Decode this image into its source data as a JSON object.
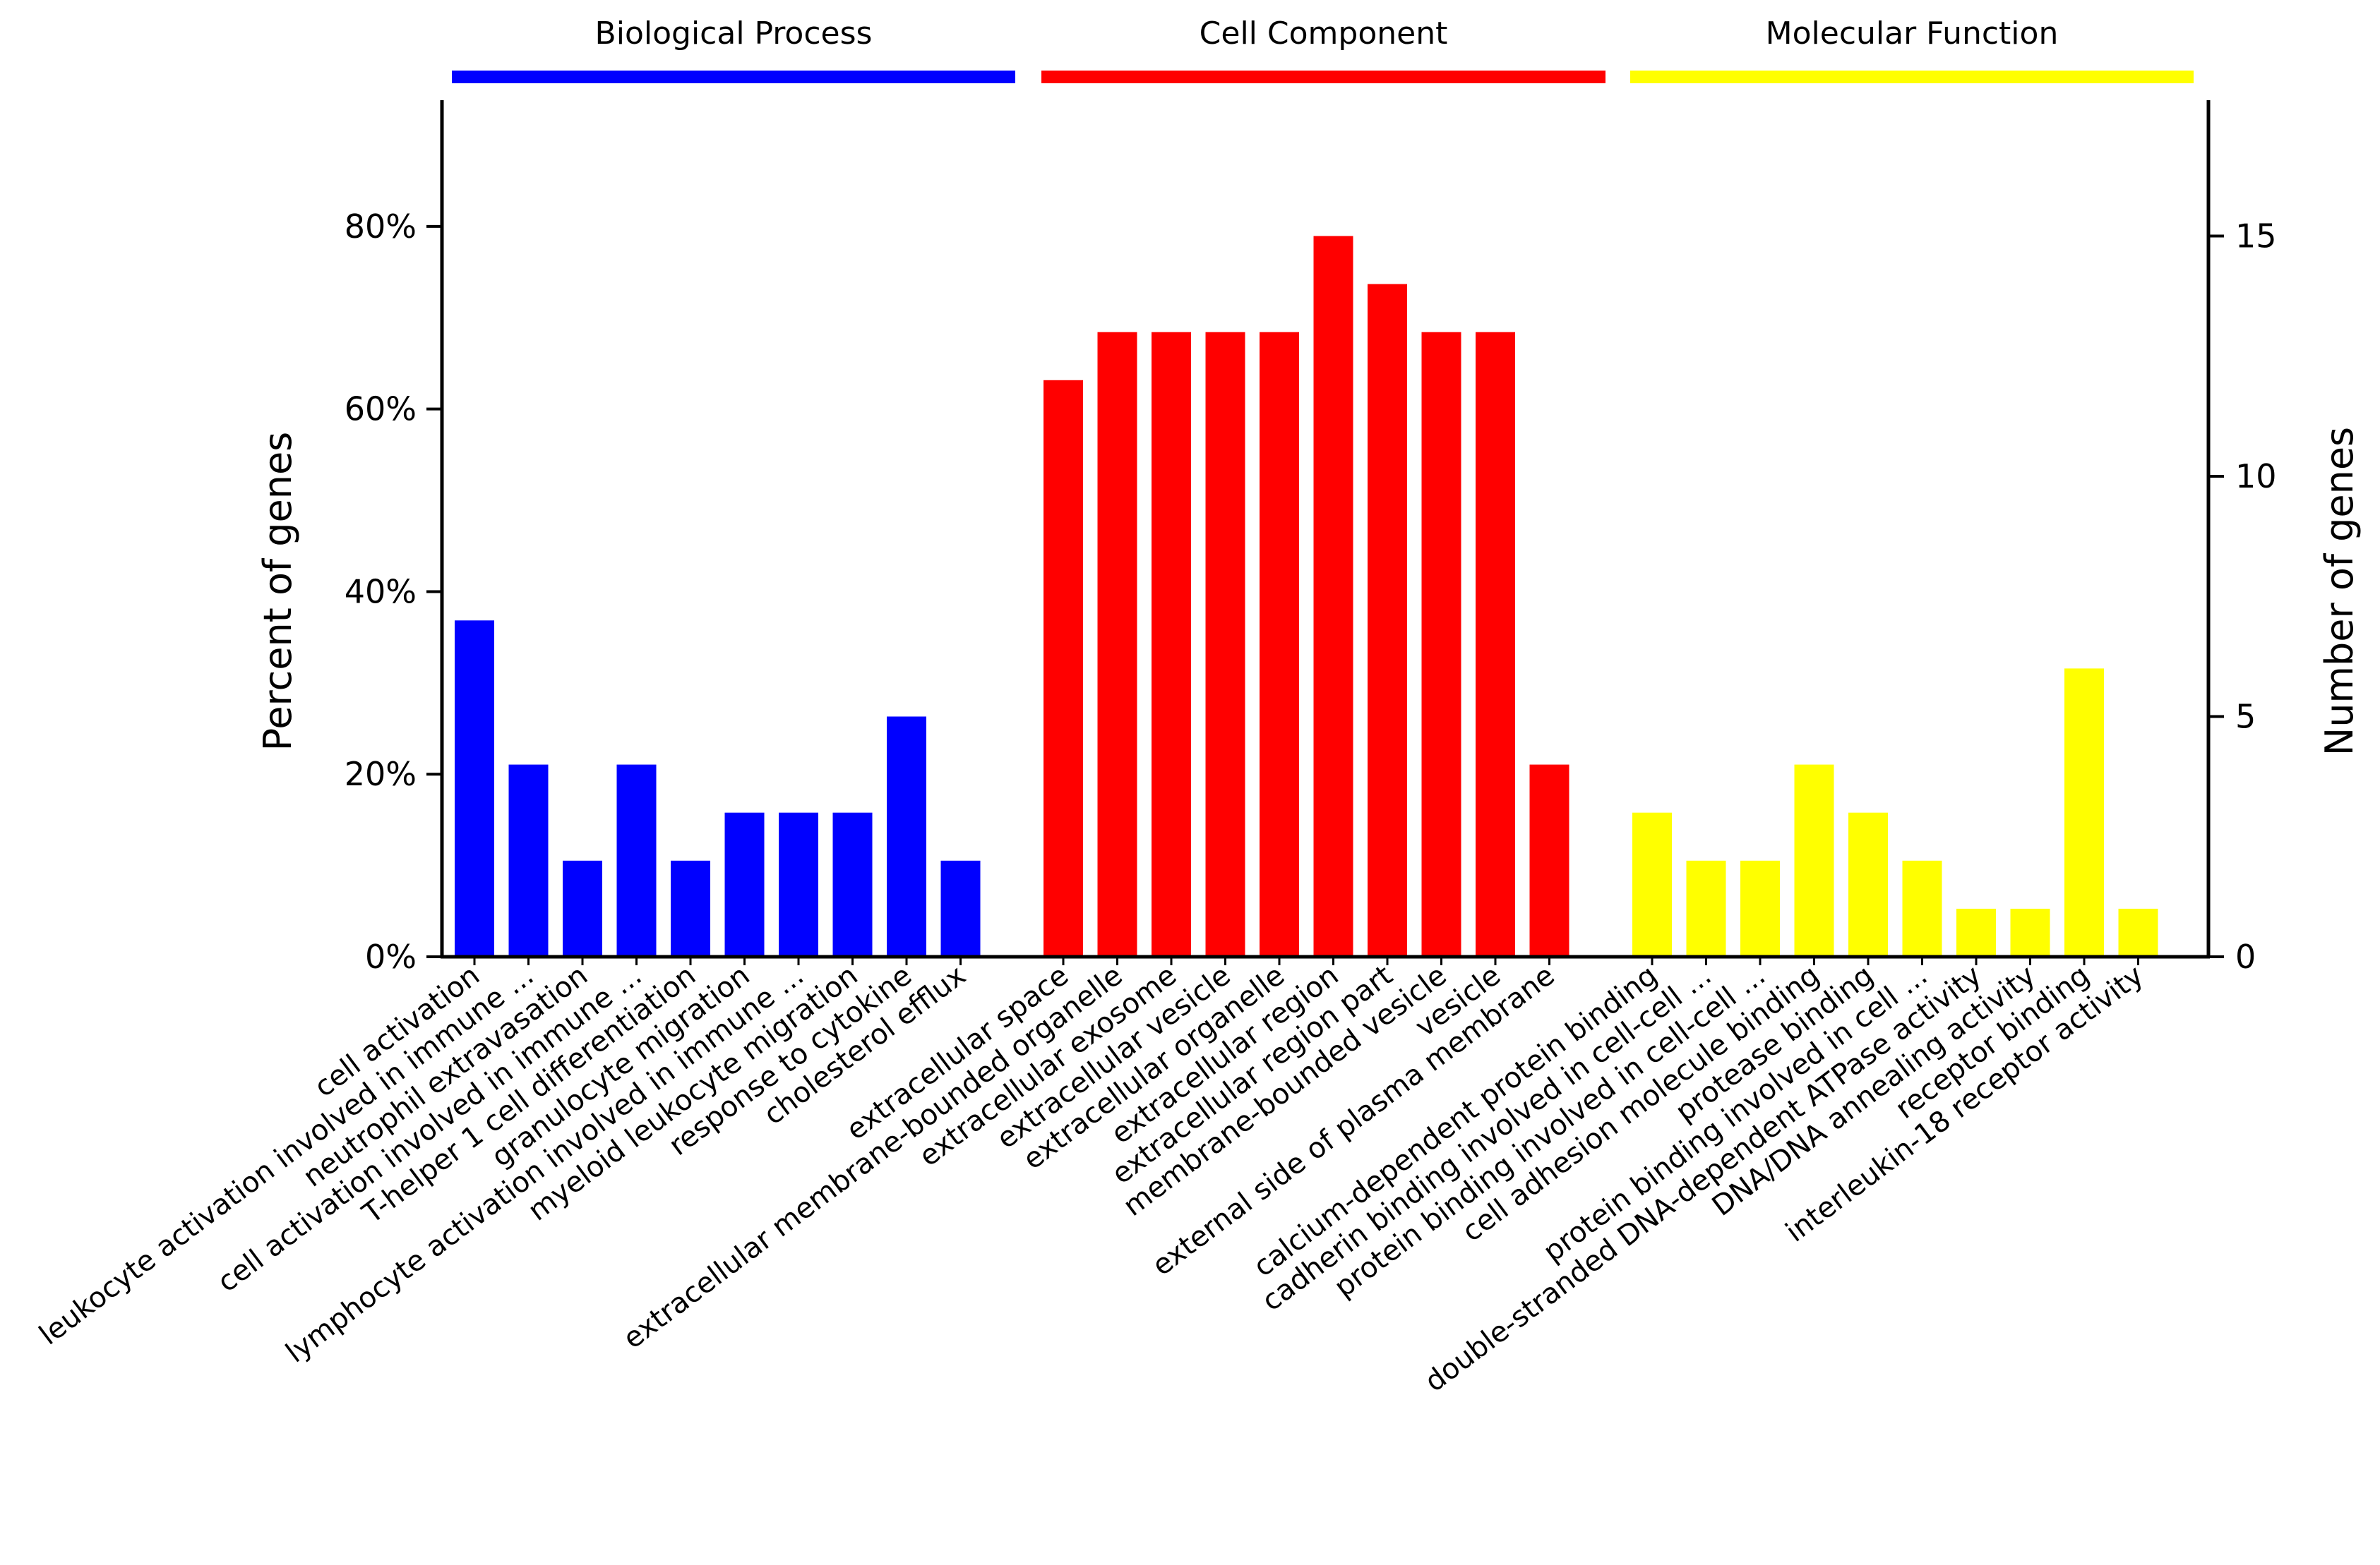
{
  "chart_data": {
    "type": "bar",
    "title": "",
    "ylabel_left": "Percent of genes",
    "ylabel_right": "Number of genes",
    "y_left_ticks": [
      "0%",
      "20%",
      "40%",
      "60%",
      "80%"
    ],
    "y_right_ticks": [
      "0",
      "5",
      "10",
      "15"
    ],
    "y_right_range": [
      0,
      18
    ],
    "total_genes": 19,
    "colors": {
      "Biological Process": "#0000ff",
      "Cell Component": "#ff0000",
      "Molecular Function": "#ffff00"
    },
    "groups": [
      {
        "name": "Biological Process",
        "color": "#0000ff",
        "categories": [
          "cell activation",
          "leukocyte activation involved in immune ...",
          "neutrophil extravasation",
          "cell activation involved in immune ...",
          "T-helper 1 cell differentiation",
          "granulocyte migration",
          "lymphocyte activation involved in immune ...",
          "myeloid leukocyte migration",
          "response to cytokine",
          "cholesterol efflux"
        ],
        "values": [
          7,
          4,
          2,
          4,
          2,
          3,
          3,
          3,
          5,
          2
        ]
      },
      {
        "name": "Cell Component",
        "color": "#ff0000",
        "categories": [
          "extracellular space",
          "extracellular membrane-bounded organelle",
          "extracellular exosome",
          "extracellular vesicle",
          "extracellular organelle",
          "extracellular region",
          "extracellular region part",
          "membrane-bounded vesicle",
          "vesicle",
          "external side of plasma membrane"
        ],
        "values": [
          12,
          13,
          13,
          13,
          13,
          15,
          14,
          13,
          13,
          4
        ]
      },
      {
        "name": "Molecular Function",
        "color": "#ffff00",
        "categories": [
          "calcium-dependent protein binding",
          "cadherin binding involved in cell-cell ...",
          "protein binding involved in cell-cell ...",
          "cell adhesion molecule binding",
          "protease binding",
          "protein binding involved in cell ...",
          "double-stranded DNA-dependent ATPase activity",
          "DNA/DNA annealing activity",
          "receptor binding",
          "interleukin-18 receptor activity"
        ],
        "values": [
          3,
          2,
          2,
          4,
          3,
          2,
          1,
          1,
          6,
          1
        ]
      }
    ]
  }
}
